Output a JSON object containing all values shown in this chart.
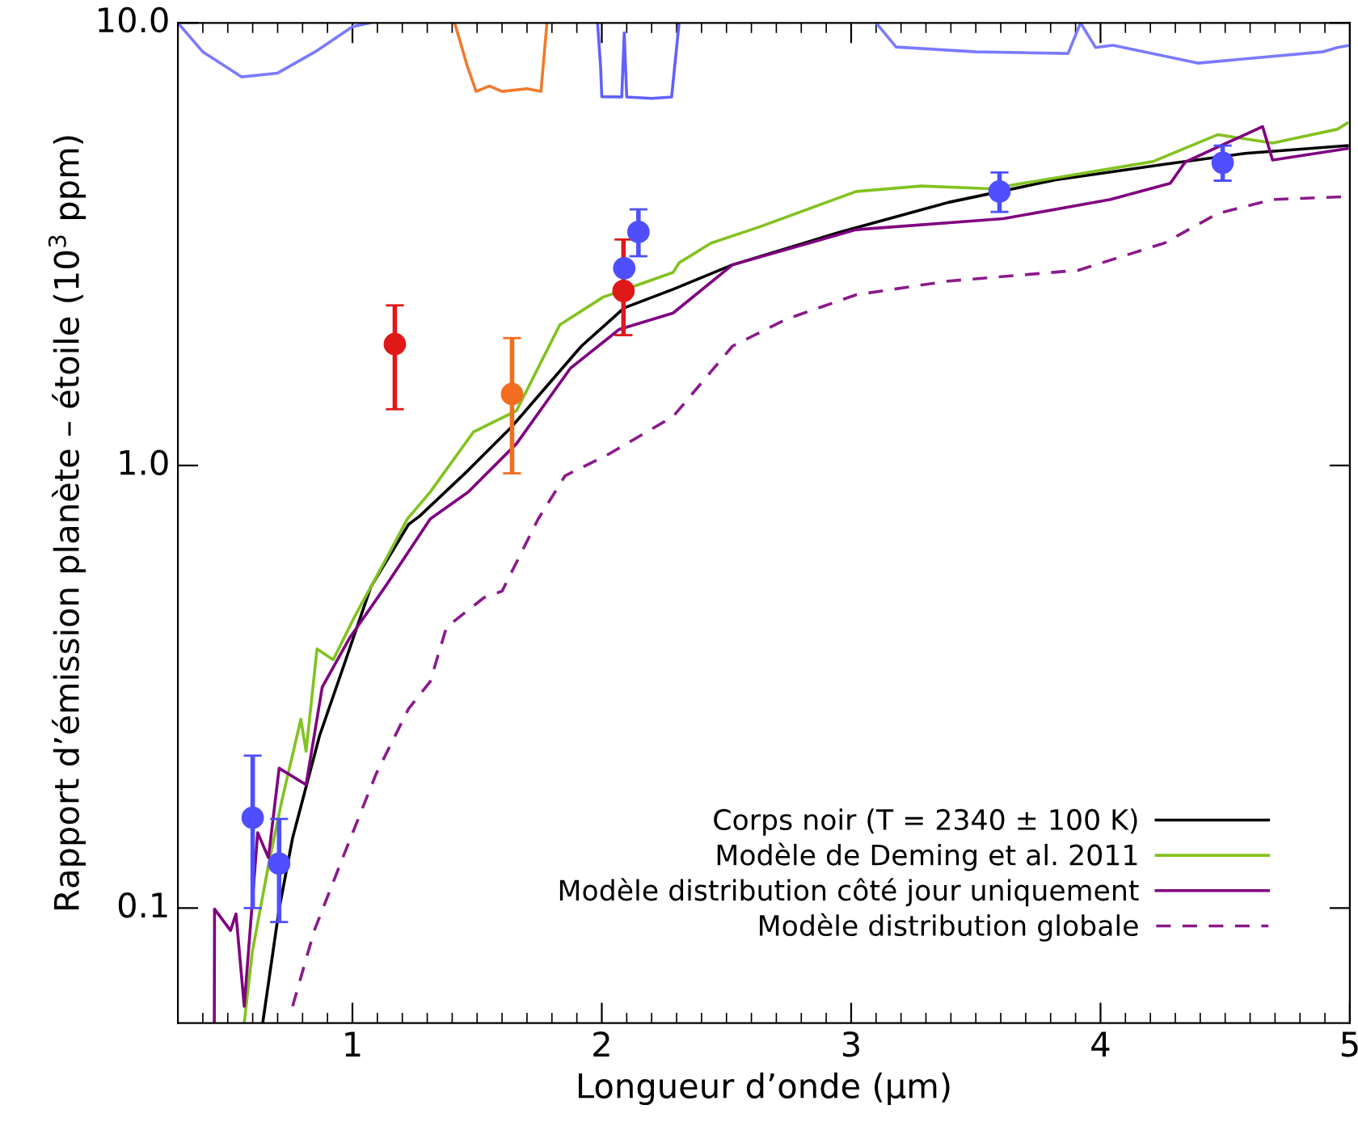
{
  "chart_data": {
    "type": "line",
    "xlabel": "Longueur d’onde (µm)",
    "ylabel": "Rapport d’émission planète – étoile (10$^{3}$ ppm)",
    "log": "y",
    "xlim": [
      0.3,
      5
    ],
    "xticks": [
      1,
      2,
      3,
      4,
      5
    ],
    "ylim": [
      0.055,
      10
    ],
    "yticks": [
      {
        "value": 0.1,
        "label": "0.1"
      },
      {
        "value": 1,
        "label": "1.0"
      },
      {
        "value": 10,
        "label": "10.0"
      }
    ],
    "grid": false,
    "legend": "bottom right",
    "series": [
      {
        "name": "Corps noir (T = 2340 ± 100 K)",
        "color": "#000000",
        "line_style": "solid",
        "x": [
          0.641,
          0.706,
          0.76,
          0.868,
          0.966,
          1.074,
          1.225,
          1.269,
          1.464,
          1.637,
          1.918,
          2.09,
          2.286,
          2.524,
          2.957,
          3.39,
          3.82,
          4.256,
          4.58,
          4.99
        ],
        "values": [
          0.0554,
          0.0995,
          0.144,
          0.245,
          0.354,
          0.532,
          0.736,
          0.768,
          0.975,
          1.22,
          1.86,
          2.27,
          2.5,
          2.84,
          3.37,
          3.93,
          4.42,
          4.79,
          5.07,
          5.28
        ]
      },
      {
        "name": "Modèle de Deming et al. 2011",
        "color": "#82c21f",
        "line_style": "solid",
        "x": [
          0.566,
          0.598,
          0.663,
          0.717,
          0.793,
          0.814,
          0.858,
          0.923,
          1.009,
          1.139,
          1.22,
          1.312,
          1.485,
          1.658,
          1.832,
          2.005,
          2.286,
          2.31,
          2.438,
          2.633,
          3.02,
          3.28,
          3.56,
          4.21,
          4.47,
          4.69,
          4.95,
          4.99
        ],
        "values": [
          0.055,
          0.0794,
          0.125,
          0.175,
          0.267,
          0.226,
          0.385,
          0.364,
          0.456,
          0.621,
          0.757,
          0.871,
          1.19,
          1.33,
          2.08,
          2.4,
          2.73,
          2.87,
          3.18,
          3.46,
          4.16,
          4.28,
          4.22,
          4.86,
          5.59,
          5.35,
          5.75,
          5.94
        ]
      },
      {
        "name": "Modèle distribution côté jour uniquement",
        "color": "#800080",
        "line_style": "solid",
        "x": [
          0.446,
          0.447,
          0.511,
          0.533,
          0.566,
          0.62,
          0.663,
          0.706,
          0.814,
          0.879,
          0.988,
          1.139,
          1.312,
          1.464,
          1.658,
          1.875,
          2.07,
          2.286,
          2.524,
          3.02,
          3.61,
          4.04,
          4.28,
          4.34,
          4.65,
          4.69,
          4.99
        ],
        "values": [
          0.055,
          0.0995,
          0.089,
          0.097,
          0.06,
          0.148,
          0.13,
          0.207,
          0.19,
          0.316,
          0.407,
          0.54,
          0.757,
          0.871,
          1.12,
          1.66,
          2.03,
          2.21,
          2.84,
          3.41,
          3.61,
          3.99,
          4.34,
          4.85,
          5.83,
          4.9,
          5.2
        ]
      },
      {
        "name": "Modèle distribution globale",
        "color": "#8b1a8b",
        "line_style": "dashed",
        "x": [
          0.76,
          0.847,
          0.966,
          1.095,
          1.225,
          1.312,
          1.377,
          1.528,
          1.6,
          1.745,
          1.853,
          2.027,
          2.286,
          2.524,
          2.74,
          3.02,
          3.39,
          3.91,
          4.256,
          4.47,
          4.69,
          4.99
        ],
        "values": [
          0.06,
          0.089,
          0.132,
          0.201,
          0.282,
          0.325,
          0.431,
          0.503,
          0.52,
          0.757,
          0.948,
          1.06,
          1.29,
          1.86,
          2.14,
          2.43,
          2.61,
          2.76,
          3.18,
          3.71,
          3.99,
          4.05
        ]
      },
      {
        "color": "#7a7aff",
        "line_style": "solid",
        "x": [
          0.3,
          0.4,
          0.555,
          0.7,
          0.85,
          1.0,
          1.07
        ],
        "values": [
          10,
          8.6,
          7.55,
          7.7,
          8.6,
          9.8,
          10
        ]
      },
      {
        "color": "#f07a2a",
        "line_style": "solid",
        "x": [
          1.41,
          1.46,
          1.496,
          1.55,
          1.6,
          1.7,
          1.756,
          1.78
        ],
        "values": [
          10,
          8.0,
          7.0,
          7.2,
          7.0,
          7.1,
          7.0,
          10
        ]
      },
      {
        "color": "#6060ff",
        "line_style": "solid",
        "x": [
          1.983,
          1.995,
          2.0,
          2.08,
          2.09,
          2.1,
          2.2,
          2.28,
          2.31
        ],
        "values": [
          10,
          8.0,
          6.81,
          6.8,
          9.5,
          6.8,
          6.75,
          6.8,
          10
        ]
      },
      {
        "color": "#7a7aff",
        "line_style": "solid",
        "x": [
          3.1,
          3.18,
          3.5,
          3.87,
          3.92,
          3.98,
          4.05,
          4.39,
          4.89,
          4.95,
          5.0
        ],
        "values": [
          10,
          8.82,
          8.6,
          8.53,
          10,
          8.8,
          8.9,
          8.11,
          8.6,
          8.8,
          8.9
        ]
      },
      {
        "type": "scatter",
        "color": "#4f4fff",
        "marker": "circle",
        "x": [
          0.6,
          0.706,
          2.09,
          2.147,
          3.595,
          4.49
        ],
        "values": [
          0.16,
          0.126,
          2.79,
          3.37,
          4.16,
          4.83
        ],
        "errors": [
          [
            0.1,
            0.221
          ],
          [
            0.093,
            0.159
          ],
          null,
          [
            2.97,
            3.79
          ],
          [
            3.74,
            4.59
          ],
          [
            4.4,
            5.28
          ]
        ]
      },
      {
        "type": "scatter",
        "color": "#f26d1f",
        "marker": "circle",
        "x": [
          1.64
        ],
        "values": [
          1.45
        ],
        "errors": [
          [
            0.96,
            1.94
          ]
        ]
      },
      {
        "type": "scatter",
        "color": "#e01818",
        "marker": "circle",
        "x": [
          1.17,
          2.087
        ],
        "values": [
          1.88,
          2.48
        ],
        "errors": [
          [
            1.34,
            2.3
          ],
          [
            1.97,
            3.24
          ]
        ]
      }
    ]
  }
}
